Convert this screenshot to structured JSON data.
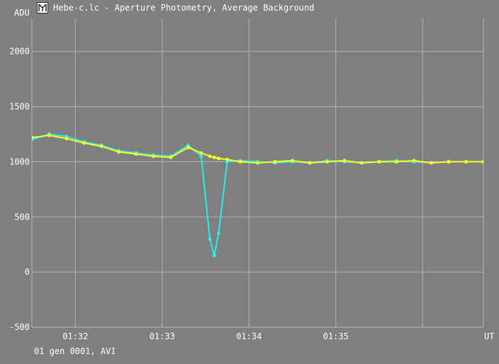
{
  "window": {
    "title": "Hebe-c.lc - Aperture Photometry, Average Background",
    "footer": "01 gen 0001, AVI",
    "icon": "lightcurve-app-icon"
  },
  "colors": {
    "background": "#7f7f7f",
    "grid": "#b4b4b4",
    "text": "#ffffff",
    "series_cyan": "#22f0f0",
    "series_yellow": "#ffff22"
  },
  "chart_data": {
    "type": "line",
    "title": "",
    "ylabel": "ADU",
    "xlabel": "UT",
    "ylim": [
      -500,
      2300
    ],
    "xlim": [
      1.5,
      6.7
    ],
    "y_ticks": [
      -500,
      0,
      500,
      1000,
      1500,
      2000
    ],
    "x_ticks": [
      {
        "value": 2,
        "label": "01:32"
      },
      {
        "value": 3,
        "label": "01:33"
      },
      {
        "value": 4,
        "label": "01:34"
      },
      {
        "value": 5,
        "label": "01:35"
      },
      {
        "value": 6,
        "label": ""
      }
    ],
    "grid": true,
    "legend": "none",
    "series": [
      {
        "color": "#22f0f0",
        "x": [
          1.5,
          1.7,
          1.9,
          2.1,
          2.3,
          2.5,
          2.7,
          2.9,
          3.1,
          3.3,
          3.45,
          3.55,
          3.6,
          3.65,
          3.75,
          3.9,
          4.1,
          4.3,
          4.5,
          4.7,
          4.9,
          5.1,
          5.3,
          5.5,
          5.7,
          5.9,
          6.1,
          6.3,
          6.5,
          6.7
        ],
        "values": [
          1200,
          1250,
          1230,
          1180,
          1150,
          1100,
          1080,
          1060,
          1050,
          1150,
          1050,
          300,
          150,
          350,
          1000,
          1010,
          1000,
          990,
          1000,
          990,
          1010,
          1000,
          990,
          1000,
          1010,
          1000,
          990,
          1000,
          1000,
          1000
        ]
      },
      {
        "color": "#ffff22",
        "x": [
          1.5,
          1.7,
          1.9,
          2.1,
          2.3,
          2.5,
          2.7,
          2.9,
          3.1,
          3.3,
          3.45,
          3.55,
          3.6,
          3.65,
          3.75,
          3.9,
          4.1,
          4.3,
          4.5,
          4.7,
          4.9,
          5.1,
          5.3,
          5.5,
          5.7,
          5.9,
          6.1,
          6.3,
          6.5,
          6.7
        ],
        "values": [
          1220,
          1240,
          1210,
          1170,
          1140,
          1090,
          1070,
          1050,
          1040,
          1130,
          1080,
          1050,
          1040,
          1030,
          1020,
          1000,
          990,
          1000,
          1010,
          990,
          1000,
          1010,
          990,
          1000,
          1000,
          1010,
          990,
          1000,
          1000,
          1000
        ]
      }
    ]
  }
}
